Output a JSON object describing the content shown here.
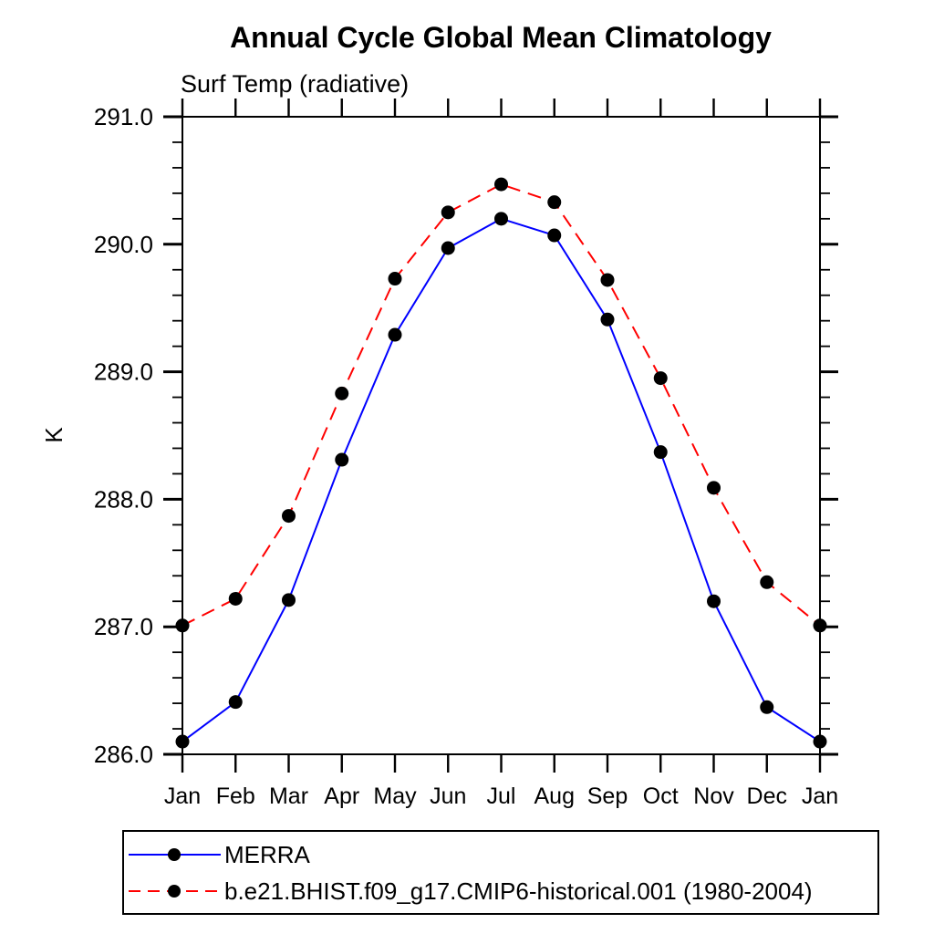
{
  "title": "Annual Cycle Global Mean Climatology",
  "subtitle": "Surf Temp (radiative)",
  "chart_data": {
    "type": "line",
    "title": "Annual Cycle Global Mean Climatology",
    "subtitle": "Surf Temp (radiative)",
    "xlabel": "",
    "ylabel": "K",
    "x_categories": [
      "Jan",
      "Feb",
      "Mar",
      "Apr",
      "May",
      "Jun",
      "Jul",
      "Aug",
      "Sep",
      "Oct",
      "Nov",
      "Dec",
      "Jan"
    ],
    "ylim": [
      286.0,
      291.0
    ],
    "ytick_major_interval": 1.0,
    "ytick_minor_interval": 0.2,
    "grid": false,
    "legend_position": "below-left",
    "series": [
      {
        "name": "MERRA",
        "line_style": "solid",
        "line_color": "#0000ff",
        "marker": "filled-circle",
        "marker_color": "#000000",
        "values": [
          286.1,
          286.41,
          287.21,
          288.31,
          289.29,
          289.97,
          290.2,
          290.07,
          289.41,
          288.37,
          287.2,
          286.37,
          286.1
        ]
      },
      {
        "name": "b.e21.BHIST.f09_g17.CMIP6-historical.001 (1980-2004)",
        "line_style": "dashed",
        "line_color": "#ff0000",
        "marker": "filled-circle",
        "marker_color": "#000000",
        "values": [
          287.01,
          287.22,
          287.87,
          288.83,
          289.73,
          290.25,
          290.47,
          290.33,
          289.72,
          288.95,
          288.09,
          287.35,
          287.01
        ]
      }
    ],
    "colors": {
      "axis": "#000000",
      "text": "#000000",
      "background": "#ffffff",
      "merra_line": "#0000ff",
      "model_line": "#ff0000",
      "marker": "#000000"
    }
  }
}
